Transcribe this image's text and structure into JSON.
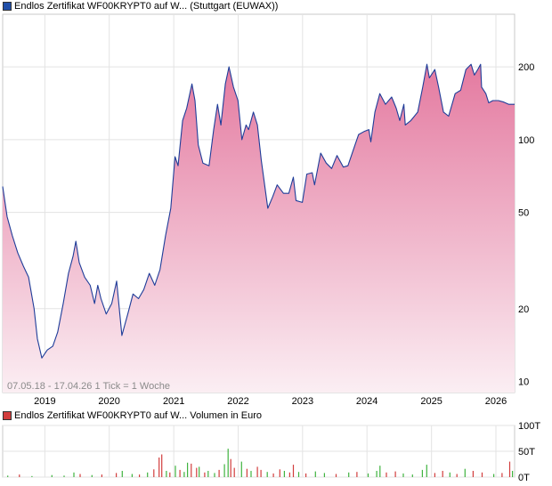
{
  "chart_data": [
    {
      "type": "area",
      "title": "Endlos Zertifikat WF00KRYPT0 auf W... (Stuttgart (EUWAX))",
      "legend_color": "#1f4ea8",
      "line_color": "#1f3d99",
      "fill_top_color": "#e47aa0",
      "fill_bottom_color": "#fbeef3",
      "caption": "07.05.18 - 17.04.26   1 Tick = 1 Woche",
      "y_scale": "log",
      "ylim": [
        9,
        330
      ],
      "y_ticks": [
        10,
        20,
        50,
        100,
        200
      ],
      "y_tick_labels": [
        "10",
        "20",
        "50",
        "100",
        "200"
      ],
      "x_range": [
        "2018-05-07",
        "2026-04-17"
      ],
      "x_ticks": [
        "2019-01-01",
        "2020-01-01",
        "2021-01-01",
        "2022-01-01",
        "2023-01-01",
        "2024-01-01",
        "2025-01-01",
        "2026-01-01"
      ],
      "x_tick_labels": [
        "2019",
        "2020",
        "2021",
        "2022",
        "2023",
        "2024",
        "2025",
        "2026"
      ],
      "grid": true,
      "points": [
        [
          "2018-05-07",
          64
        ],
        [
          "2018-06-01",
          48
        ],
        [
          "2018-07-01",
          40
        ],
        [
          "2018-08-01",
          34
        ],
        [
          "2018-09-01",
          30
        ],
        [
          "2018-10-01",
          27
        ],
        [
          "2018-11-01",
          20
        ],
        [
          "2018-11-20",
          15
        ],
        [
          "2018-12-15",
          12.5
        ],
        [
          "2019-01-15",
          13.5
        ],
        [
          "2019-02-15",
          14
        ],
        [
          "2019-03-15",
          16
        ],
        [
          "2019-04-15",
          21
        ],
        [
          "2019-05-15",
          28
        ],
        [
          "2019-06-10",
          33
        ],
        [
          "2019-06-26",
          38
        ],
        [
          "2019-07-15",
          31
        ],
        [
          "2019-08-15",
          27
        ],
        [
          "2019-09-15",
          25
        ],
        [
          "2019-10-10",
          21
        ],
        [
          "2019-10-28",
          25
        ],
        [
          "2019-11-15",
          22
        ],
        [
          "2019-12-15",
          19
        ],
        [
          "2020-01-15",
          21
        ],
        [
          "2020-02-12",
          26
        ],
        [
          "2020-03-13",
          15.5
        ],
        [
          "2020-04-15",
          19
        ],
        [
          "2020-05-15",
          23
        ],
        [
          "2020-06-15",
          22
        ],
        [
          "2020-07-15",
          24
        ],
        [
          "2020-08-15",
          28
        ],
        [
          "2020-09-15",
          25
        ],
        [
          "2020-10-15",
          29
        ],
        [
          "2020-11-15",
          40
        ],
        [
          "2020-12-15",
          52
        ],
        [
          "2021-01-08",
          85
        ],
        [
          "2021-01-25",
          78
        ],
        [
          "2021-02-20",
          120
        ],
        [
          "2021-03-15",
          135
        ],
        [
          "2021-04-14",
          170
        ],
        [
          "2021-05-01",
          145
        ],
        [
          "2021-05-20",
          95
        ],
        [
          "2021-06-15",
          80
        ],
        [
          "2021-07-20",
          78
        ],
        [
          "2021-08-15",
          110
        ],
        [
          "2021-09-06",
          140
        ],
        [
          "2021-09-25",
          115
        ],
        [
          "2021-10-20",
          170
        ],
        [
          "2021-11-10",
          200
        ],
        [
          "2021-12-05",
          165
        ],
        [
          "2021-12-31",
          145
        ],
        [
          "2022-01-22",
          100
        ],
        [
          "2022-02-15",
          115
        ],
        [
          "2022-03-01",
          110
        ],
        [
          "2022-03-28",
          130
        ],
        [
          "2022-04-20",
          115
        ],
        [
          "2022-05-12",
          82
        ],
        [
          "2022-06-18",
          52
        ],
        [
          "2022-07-15",
          58
        ],
        [
          "2022-08-10",
          65
        ],
        [
          "2022-09-15",
          60
        ],
        [
          "2022-10-15",
          60
        ],
        [
          "2022-11-10",
          70
        ],
        [
          "2022-11-25",
          56
        ],
        [
          "2022-12-31",
          55
        ],
        [
          "2023-01-25",
          72
        ],
        [
          "2023-02-25",
          73
        ],
        [
          "2023-03-10",
          65
        ],
        [
          "2023-04-14",
          88
        ],
        [
          "2023-05-15",
          80
        ],
        [
          "2023-06-15",
          76
        ],
        [
          "2023-07-15",
          86
        ],
        [
          "2023-08-20",
          77
        ],
        [
          "2023-09-15",
          78
        ],
        [
          "2023-10-25",
          95
        ],
        [
          "2023-11-15",
          105
        ],
        [
          "2023-12-15",
          108
        ],
        [
          "2024-01-12",
          110
        ],
        [
          "2024-01-23",
          98
        ],
        [
          "2024-02-15",
          130
        ],
        [
          "2024-03-14",
          155
        ],
        [
          "2024-04-15",
          140
        ],
        [
          "2024-05-20",
          150
        ],
        [
          "2024-06-15",
          135
        ],
        [
          "2024-07-05",
          120
        ],
        [
          "2024-07-28",
          140
        ],
        [
          "2024-08-05",
          115
        ],
        [
          "2024-09-06",
          120
        ],
        [
          "2024-10-15",
          130
        ],
        [
          "2024-11-12",
          165
        ],
        [
          "2024-12-06",
          205
        ],
        [
          "2024-12-20",
          180
        ],
        [
          "2025-01-20",
          195
        ],
        [
          "2025-02-10",
          165
        ],
        [
          "2025-03-10",
          130
        ],
        [
          "2025-04-08",
          125
        ],
        [
          "2025-05-15",
          155
        ],
        [
          "2025-06-15",
          160
        ],
        [
          "2025-07-15",
          195
        ],
        [
          "2025-08-13",
          205
        ],
        [
          "2025-09-01",
          185
        ],
        [
          "2025-09-20",
          195
        ],
        [
          "2025-10-06",
          205
        ],
        [
          "2025-10-12",
          165
        ],
        [
          "2025-11-05",
          155
        ],
        [
          "2025-11-21",
          142
        ],
        [
          "2025-12-15",
          145
        ],
        [
          "2026-01-15",
          145
        ],
        [
          "2026-02-15",
          143
        ],
        [
          "2026-03-15",
          140
        ],
        [
          "2026-04-17",
          140
        ]
      ]
    },
    {
      "type": "bar",
      "title": "Endlos Zertifikat WF00KRYPT0 auf W... Volumen in Euro",
      "legend_color": "#d23d3d",
      "up_color": "#3fb33f",
      "down_color": "#d23d3d",
      "ylim": [
        0,
        100000
      ],
      "y_ticks": [
        0,
        50000,
        100000
      ],
      "y_tick_labels": [
        "0T",
        "50T",
        "100T"
      ],
      "grid": true,
      "bars": [
        [
          "2018-06-05",
          3000,
          "up"
        ],
        [
          "2018-08-10",
          5000,
          "down"
        ],
        [
          "2018-10-20",
          2000,
          "up"
        ],
        [
          "2019-02-10",
          4000,
          "up"
        ],
        [
          "2019-04-20",
          3000,
          "up"
        ],
        [
          "2019-06-15",
          9000,
          "up"
        ],
        [
          "2019-07-20",
          6000,
          "down"
        ],
        [
          "2019-09-25",
          4000,
          "up"
        ],
        [
          "2019-11-20",
          5000,
          "down"
        ],
        [
          "2020-02-10",
          8000,
          "down"
        ],
        [
          "2020-03-15",
          12000,
          "up"
        ],
        [
          "2020-05-10",
          6000,
          "up"
        ],
        [
          "2020-06-20",
          5000,
          "down"
        ],
        [
          "2020-08-05",
          9000,
          "up"
        ],
        [
          "2020-09-10",
          15000,
          "down"
        ],
        [
          "2020-10-10",
          38000,
          "down"
        ],
        [
          "2020-10-25",
          44000,
          "red"
        ],
        [
          "2020-11-20",
          12000,
          "up"
        ],
        [
          "2020-12-10",
          9000,
          "down"
        ],
        [
          "2021-01-10",
          22000,
          "up"
        ],
        [
          "2021-02-05",
          14000,
          "down"
        ],
        [
          "2021-03-01",
          10000,
          "up"
        ],
        [
          "2021-03-20",
          28000,
          "up"
        ],
        [
          "2021-04-10",
          26000,
          "down"
        ],
        [
          "2021-05-10",
          18000,
          "down"
        ],
        [
          "2021-05-25",
          20000,
          "up"
        ],
        [
          "2021-06-25",
          9000,
          "down"
        ],
        [
          "2021-07-15",
          12000,
          "up"
        ],
        [
          "2021-08-20",
          8000,
          "up"
        ],
        [
          "2021-09-15",
          14000,
          "down"
        ],
        [
          "2021-10-15",
          25000,
          "up"
        ],
        [
          "2021-11-05",
          55000,
          "up"
        ],
        [
          "2021-11-20",
          35000,
          "down"
        ],
        [
          "2021-12-10",
          18000,
          "down"
        ],
        [
          "2022-01-20",
          30000,
          "up"
        ],
        [
          "2022-02-20",
          16000,
          "down"
        ],
        [
          "2022-03-15",
          12000,
          "up"
        ],
        [
          "2022-04-20",
          20000,
          "down"
        ],
        [
          "2022-05-10",
          14000,
          "down"
        ],
        [
          "2022-06-15",
          10000,
          "up"
        ],
        [
          "2022-07-20",
          7000,
          "down"
        ],
        [
          "2022-08-25",
          15000,
          "down"
        ],
        [
          "2022-09-20",
          12000,
          "up"
        ],
        [
          "2022-10-20",
          9000,
          "down"
        ],
        [
          "2022-11-10",
          24000,
          "red"
        ],
        [
          "2022-12-10",
          10000,
          "up"
        ],
        [
          "2023-01-20",
          7000,
          "down"
        ],
        [
          "2023-03-15",
          11000,
          "up"
        ],
        [
          "2023-05-05",
          8000,
          "up"
        ],
        [
          "2023-07-10",
          6000,
          "down"
        ],
        [
          "2023-09-20",
          9000,
          "up"
        ],
        [
          "2023-11-05",
          10000,
          "down"
        ],
        [
          "2024-01-08",
          7000,
          "up"
        ],
        [
          "2024-02-25",
          12000,
          "up"
        ],
        [
          "2024-03-15",
          22000,
          "up"
        ],
        [
          "2024-04-20",
          9000,
          "down"
        ],
        [
          "2024-06-10",
          11000,
          "down"
        ],
        [
          "2024-07-25",
          7000,
          "up"
        ],
        [
          "2024-09-15",
          5000,
          "up"
        ],
        [
          "2024-11-10",
          14000,
          "up"
        ],
        [
          "2024-12-05",
          24000,
          "up"
        ],
        [
          "2025-01-20",
          8000,
          "down"
        ],
        [
          "2025-03-05",
          12000,
          "down"
        ],
        [
          "2025-04-15",
          9000,
          "up"
        ],
        [
          "2025-05-25",
          6000,
          "down"
        ],
        [
          "2025-07-10",
          16000,
          "up"
        ],
        [
          "2025-08-25",
          12000,
          "down"
        ],
        [
          "2025-10-15",
          9000,
          "down"
        ],
        [
          "2025-12-20",
          6000,
          "up"
        ],
        [
          "2026-02-05",
          8000,
          "down"
        ],
        [
          "2026-03-20",
          30000,
          "red"
        ],
        [
          "2026-04-05",
          12000,
          "up"
        ]
      ]
    }
  ]
}
